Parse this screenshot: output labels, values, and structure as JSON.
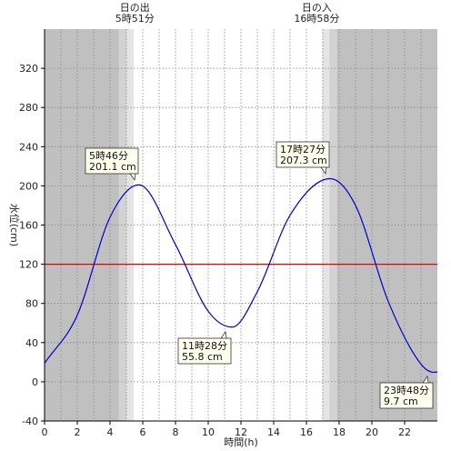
{
  "chart_data": {
    "type": "line",
    "xlabel": "時間(h)",
    "ylabel": "水位(cm)",
    "xlim": [
      0,
      24
    ],
    "ylim": [
      -40,
      360
    ],
    "x_ticks": [
      0,
      2,
      4,
      6,
      8,
      10,
      12,
      14,
      16,
      18,
      20,
      22
    ],
    "y_ticks": [
      -40,
      0,
      40,
      80,
      120,
      160,
      200,
      240,
      280,
      320
    ],
    "grid": true,
    "sunrise": {
      "title": "日の出",
      "time": "5時51分",
      "hour": 5.85
    },
    "sunset": {
      "title": "日の入",
      "time": "16時58分",
      "hour": 16.967
    },
    "reference_line": {
      "value": 120,
      "color": "#e00000"
    },
    "series": [
      {
        "color": "#0000cc",
        "x": [
          0,
          2,
          4,
          5.767,
          8,
          10,
          11.467,
          13,
          15,
          17.45,
          19,
          21,
          23,
          23.8,
          24
        ],
        "y": [
          19,
          68,
          168,
          201.1,
          140,
          72,
          55.8,
          92,
          170,
          207.3,
          180,
          82,
          18,
          9.7,
          10
        ]
      }
    ],
    "annotations": [
      {
        "time": "5時46分",
        "value": "201.1 cm",
        "x": 5.767,
        "y": 201.1
      },
      {
        "time": "11時28分",
        "value": "55.8 cm",
        "x": 11.467,
        "y": 55.8
      },
      {
        "time": "17時27分",
        "value": "207.3 cm",
        "x": 17.45,
        "y": 207.3
      },
      {
        "time": "23時48分",
        "value": "9.7 cm",
        "x": 23.8,
        "y": 9.7
      }
    ],
    "colors": {
      "night": "#c0c0c0",
      "twilight_dark": "#d2d2d2",
      "twilight_light": "#e4e4e4",
      "day": "#ffffff",
      "callout_fill": "#ffffee"
    }
  }
}
